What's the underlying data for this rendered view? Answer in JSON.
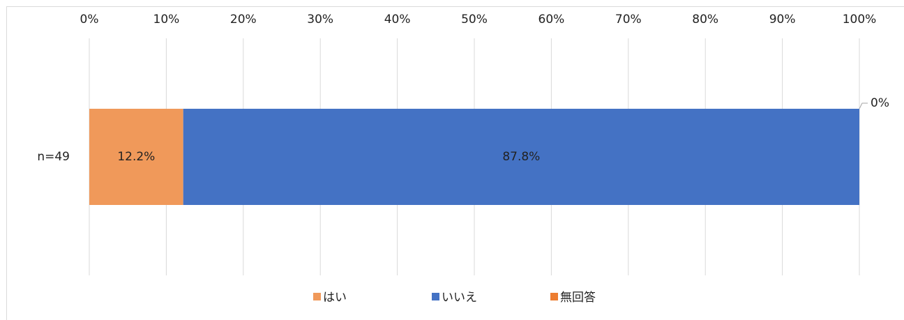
{
  "chart_data": {
    "type": "stacked-bar-horizontal",
    "categories": [
      "n=49"
    ],
    "series": [
      {
        "name": "はい",
        "color": "#f0995a",
        "values": [
          12.2
        ],
        "value_labels": [
          "12.2%"
        ]
      },
      {
        "name": "いいえ",
        "color": "#4472c4",
        "values": [
          87.8
        ],
        "value_labels": [
          "87.8%"
        ]
      },
      {
        "name": "無回答",
        "color": "#ed7d31",
        "values": [
          0
        ],
        "value_labels": [
          "0%"
        ]
      }
    ],
    "xlim": [
      0,
      100
    ],
    "xticks": [
      {
        "value": 0,
        "label": "0%"
      },
      {
        "value": 10,
        "label": "10%"
      },
      {
        "value": 20,
        "label": "20%"
      },
      {
        "value": 30,
        "label": "30%"
      },
      {
        "value": 40,
        "label": "40%"
      },
      {
        "value": 50,
        "label": "50%"
      },
      {
        "value": 60,
        "label": "60%"
      },
      {
        "value": 70,
        "label": "70%"
      },
      {
        "value": 80,
        "label": "80%"
      },
      {
        "value": 90,
        "label": "90%"
      },
      {
        "value": 100,
        "label": "100%"
      }
    ],
    "grid": true,
    "legend": "bottom"
  }
}
